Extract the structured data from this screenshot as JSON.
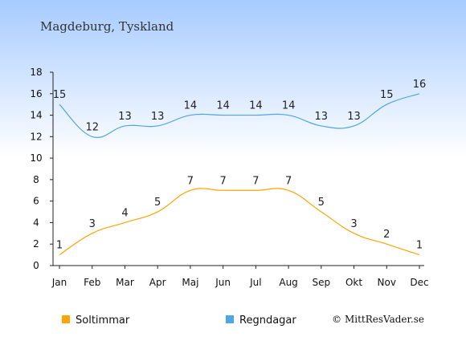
{
  "chart_data": {
    "type": "line",
    "title": "Magdeburg, Tyskland",
    "categories": [
      "Jan",
      "Feb",
      "Mar",
      "Apr",
      "Maj",
      "Jun",
      "Jul",
      "Aug",
      "Sep",
      "Okt",
      "Nov",
      "Dec"
    ],
    "series": [
      {
        "name": "Soltimmar",
        "color": "#ffa500",
        "values": [
          1,
          3,
          4,
          5,
          7,
          7,
          7,
          7,
          5,
          3,
          2,
          1
        ]
      },
      {
        "name": "Regndagar",
        "color": "#4da6e8",
        "values": [
          15,
          12,
          13,
          13,
          14,
          14,
          14,
          14,
          13,
          13,
          15,
          16
        ]
      }
    ],
    "y_ticks": [
      "0",
      "2",
      "4",
      "6",
      "8",
      "10",
      "12",
      "14",
      "16",
      "18"
    ],
    "ylim": [
      0,
      18
    ],
    "grid": false,
    "legend_position": "bottom-left",
    "background": {
      "top": "#a6cbff",
      "bottom": "#ffffff"
    }
  },
  "credit": "© MittResVader.se"
}
